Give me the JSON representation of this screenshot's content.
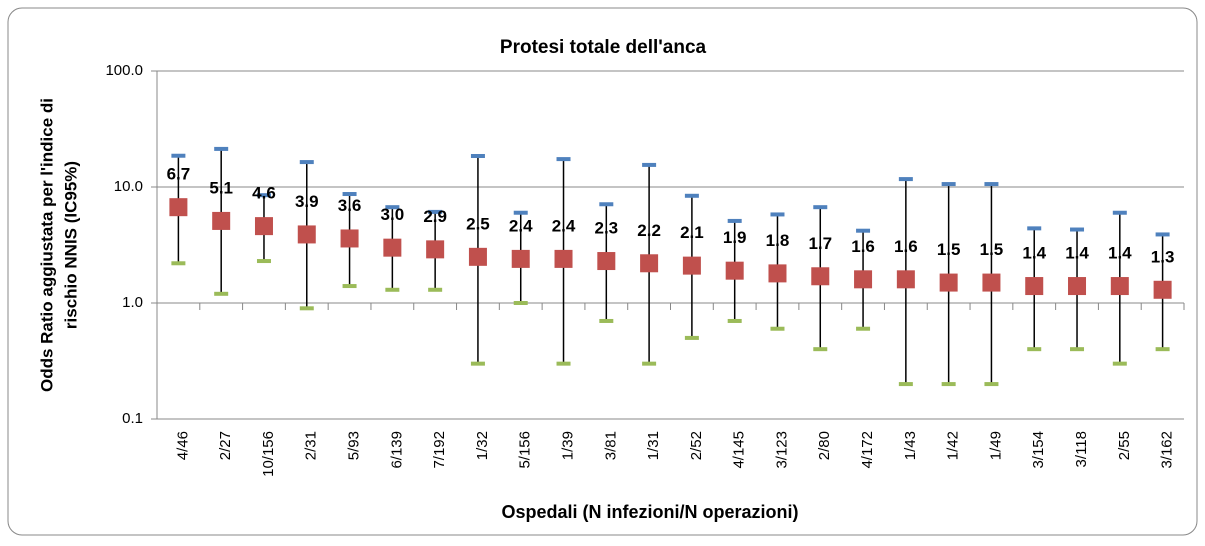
{
  "chart_data": {
    "type": "errorbar",
    "title": "Protesi totale dell'anca",
    "xlabel": "Ospedali (N infezioni/N operazioni)",
    "ylabel": [
      "Odds Ratio aggiustata per l'indice di",
      "rischio NNIS (IC95%)"
    ],
    "categories": [
      "4/46",
      "2/27",
      "10/156",
      "2/31",
      "5/93",
      "6/139",
      "7/192",
      "1/32",
      "5/156",
      "1/39",
      "3/81",
      "1/31",
      "2/52",
      "4/145",
      "3/123",
      "2/80",
      "4/172",
      "1/43",
      "1/42",
      "1/49",
      "3/154",
      "3/118",
      "2/55",
      "3/162"
    ],
    "values": [
      6.7,
      5.1,
      4.6,
      3.9,
      3.6,
      3.0,
      2.9,
      2.5,
      2.4,
      2.4,
      2.3,
      2.2,
      2.1,
      1.9,
      1.8,
      1.7,
      1.6,
      1.6,
      1.5,
      1.5,
      1.4,
      1.4,
      1.4,
      1.3
    ],
    "value_labels": [
      "6.7",
      "5.1",
      "4.6",
      "3.9",
      "3.6",
      "3.0",
      "2.9",
      "2.5",
      "2.4",
      "2.4",
      "2.3",
      "2.2",
      "2.1",
      "1.9",
      "1.8",
      "1.7",
      "1.6",
      "1.6",
      "1.5",
      "1.5",
      "1.4",
      "1.4",
      "1.4",
      "1.3"
    ],
    "upper": [
      18.6,
      21.3,
      8.5,
      16.4,
      8.7,
      6.7,
      6.1,
      18.5,
      6.0,
      17.4,
      7.1,
      15.5,
      8.4,
      5.1,
      5.8,
      6.7,
      4.2,
      11.7,
      10.6,
      10.6,
      4.4,
      4.3,
      6.0,
      3.9
    ],
    "lower": [
      2.2,
      1.2,
      2.3,
      0.9,
      1.4,
      1.3,
      1.3,
      0.3,
      1.0,
      0.3,
      0.7,
      0.3,
      0.5,
      0.7,
      0.6,
      0.4,
      0.6,
      0.2,
      0.2,
      0.2,
      0.4,
      0.4,
      0.3,
      0.4
    ],
    "color": "#c0504d",
    "upper_color": "#4f81bd",
    "lower_color": "#9bbb59",
    "log_scale": true,
    "grid": true,
    "ylim": [
      0.1,
      100
    ],
    "yticks": [
      0.1,
      {
        "value": 1,
        "label": "1.0"
      },
      {
        "value": 10,
        "label": "10.0"
      },
      {
        "value": 100,
        "label": "100.0"
      }
    ]
  }
}
